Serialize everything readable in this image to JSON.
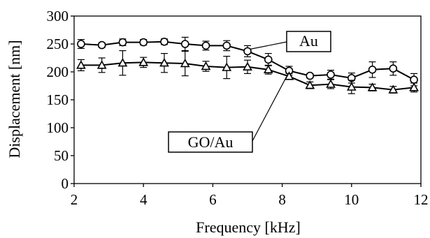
{
  "chart_data": {
    "type": "line",
    "xlabel": "Frequency [kHz]",
    "ylabel": "Displacement [nm]",
    "xlim": [
      2,
      12
    ],
    "ylim": [
      0,
      300
    ],
    "xticks": [
      2,
      4,
      6,
      8,
      10,
      12
    ],
    "yticks": [
      0,
      50,
      100,
      150,
      200,
      250,
      300
    ],
    "grid": false,
    "legend": "none",
    "series": [
      {
        "name": "Au",
        "marker": "circle",
        "x": [
          2.2,
          2.8,
          3.4,
          4.0,
          4.6,
          5.2,
          5.8,
          6.4,
          7.0,
          7.6,
          8.2,
          8.8,
          9.4,
          10.0,
          10.6,
          11.2,
          11.8
        ],
        "y": [
          250,
          248,
          253,
          253,
          254,
          250,
          247,
          247,
          237,
          222,
          202,
          193,
          195,
          189,
          204,
          206,
          186
        ],
        "err": [
          8,
          4,
          6,
          5,
          5,
          12,
          8,
          9,
          10,
          11,
          8,
          4,
          8,
          9,
          14,
          12,
          11
        ]
      },
      {
        "name": "GO/Au",
        "marker": "triangle",
        "x": [
          2.2,
          2.8,
          3.4,
          4.0,
          4.6,
          5.2,
          5.8,
          6.4,
          7.0,
          7.6,
          8.2,
          8.8,
          9.4,
          10.0,
          10.6,
          11.2,
          11.8
        ],
        "y": [
          212,
          212,
          216,
          217,
          216,
          215,
          210,
          208,
          209,
          204,
          192,
          176,
          178,
          173,
          172,
          168,
          172
        ],
        "err": [
          10,
          13,
          22,
          9,
          17,
          22,
          9,
          20,
          12,
          8,
          5,
          6,
          8,
          12,
          6,
          6,
          8
        ]
      }
    ],
    "annotations": [
      {
        "text": "Au",
        "points_to": "Au"
      },
      {
        "text": "GO/Au",
        "points_to": "GO/Au"
      }
    ]
  }
}
